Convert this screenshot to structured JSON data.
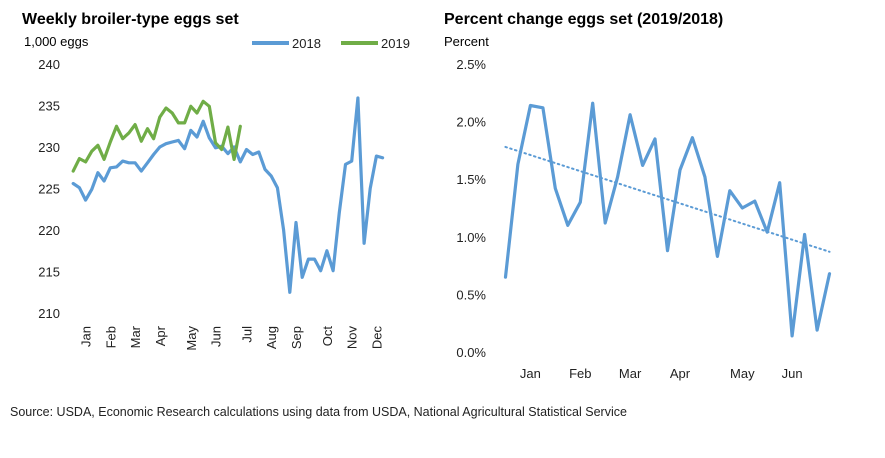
{
  "source": "Source: USDA, Economic Research calculations using data from USDA, National Agricultural Statistical Service",
  "colors": {
    "series_2018": "#5b9bd5",
    "series_2019": "#70ad47",
    "trend": "#5b9bd5"
  },
  "chart_data": [
    {
      "type": "line",
      "title": "Weekly broiler-type eggs set",
      "ylabel": "1,000 eggs",
      "xlabel": "",
      "ylim": [
        210,
        240
      ],
      "yticks": [
        "240",
        "235",
        "230",
        "225",
        "220",
        "215",
        "210"
      ],
      "ytick_values": [
        240,
        235,
        230,
        225,
        220,
        215,
        210
      ],
      "x_tick_labels": [
        "Jan",
        "Feb",
        "Mar",
        "Apr",
        "May",
        "Jun",
        "Jul",
        "Aug",
        "Sep",
        "Oct",
        "Nov",
        "Dec"
      ],
      "x_tick_weeks": [
        3,
        7,
        11,
        15,
        20,
        24,
        29,
        33,
        37,
        42,
        46,
        50
      ],
      "x_range_weeks": [
        0,
        53
      ],
      "legend": "top-right",
      "grid": false,
      "series": [
        {
          "name": "2018",
          "x": [
            1,
            2,
            3,
            4,
            5,
            6,
            7,
            8,
            9,
            10,
            11,
            12,
            13,
            14,
            15,
            16,
            17,
            18,
            19,
            20,
            21,
            22,
            23,
            24,
            25,
            26,
            27,
            28,
            29,
            30,
            31,
            32,
            33,
            34,
            35,
            36,
            37,
            38,
            39,
            40,
            41,
            42,
            43,
            44,
            45,
            46,
            47,
            48,
            49,
            50,
            51,
            52
          ],
          "values": [
            225.6,
            225.1,
            223.6,
            224.9,
            226.9,
            225.9,
            227.5,
            227.6,
            228.3,
            228.1,
            228.1,
            227.1,
            228.1,
            229.1,
            230.0,
            230.4,
            230.6,
            230.8,
            229.8,
            232.0,
            231.2,
            233.1,
            231.1,
            229.9,
            230.1,
            229.2,
            230.0,
            228.2,
            229.7,
            229.1,
            229.4,
            227.3,
            226.5,
            225.1,
            220.0,
            212.5,
            220.9,
            214.3,
            216.5,
            216.5,
            215.1,
            217.5,
            215.1,
            222.1,
            227.9,
            228.3,
            235.9,
            218.4,
            225.0,
            228.9,
            228.7,
            null
          ],
          "color": "#5b9bd5"
        },
        {
          "name": "2019",
          "x": [
            1,
            2,
            3,
            4,
            5,
            6,
            7,
            8,
            9,
            10,
            11,
            12,
            13,
            14,
            15,
            16,
            17,
            18,
            19,
            20,
            21,
            22,
            23,
            24,
            25,
            26,
            27,
            28
          ],
          "values": [
            227.1,
            228.6,
            228.2,
            229.5,
            230.2,
            228.5,
            230.6,
            232.5,
            231.0,
            231.7,
            232.7,
            230.7,
            232.2,
            231.0,
            233.6,
            234.7,
            234.1,
            232.9,
            232.9,
            234.9,
            234.1,
            235.5,
            234.9,
            230.5,
            229.7,
            232.4,
            228.5,
            232.5
          ],
          "color": "#70ad47"
        }
      ]
    },
    {
      "type": "line",
      "title": "Percent change eggs set (2019/2018)",
      "ylabel": "Percent",
      "xlabel": "",
      "ylim": [
        0,
        2.5
      ],
      "yticks": [
        "2.5%",
        "2.0%",
        "1.5%",
        "1.0%",
        "0.5%",
        "0.0%"
      ],
      "ytick_values": [
        2.5,
        2.0,
        1.5,
        1.0,
        0.5,
        0.0
      ],
      "x_tick_labels": [
        "Jan",
        "Feb",
        "Mar",
        "Apr",
        "May",
        "Jun"
      ],
      "x_tick_positions": [
        3,
        7,
        11,
        15,
        20,
        24
      ],
      "x_range": [
        0,
        28
      ],
      "grid": false,
      "trendline": {
        "style": "dotted",
        "start": [
          1,
          1.78
        ],
        "end": [
          27,
          0.87
        ]
      },
      "series": [
        {
          "x": [
            1,
            2,
            3,
            4,
            5,
            6,
            7,
            8,
            9,
            10,
            11,
            12,
            13,
            14,
            15,
            16,
            17,
            18,
            19,
            20,
            21,
            22,
            23,
            24,
            25,
            26,
            27
          ],
          "values": [
            0.65,
            1.63,
            2.14,
            2.12,
            1.42,
            1.1,
            1.3,
            2.16,
            1.12,
            1.52,
            2.06,
            1.62,
            1.85,
            0.88,
            1.58,
            1.86,
            1.52,
            0.83,
            1.4,
            1.25,
            1.31,
            1.04,
            1.47,
            0.14,
            1.02,
            0.19,
            0.68
          ],
          "color": "#5b9bd5"
        }
      ]
    }
  ]
}
